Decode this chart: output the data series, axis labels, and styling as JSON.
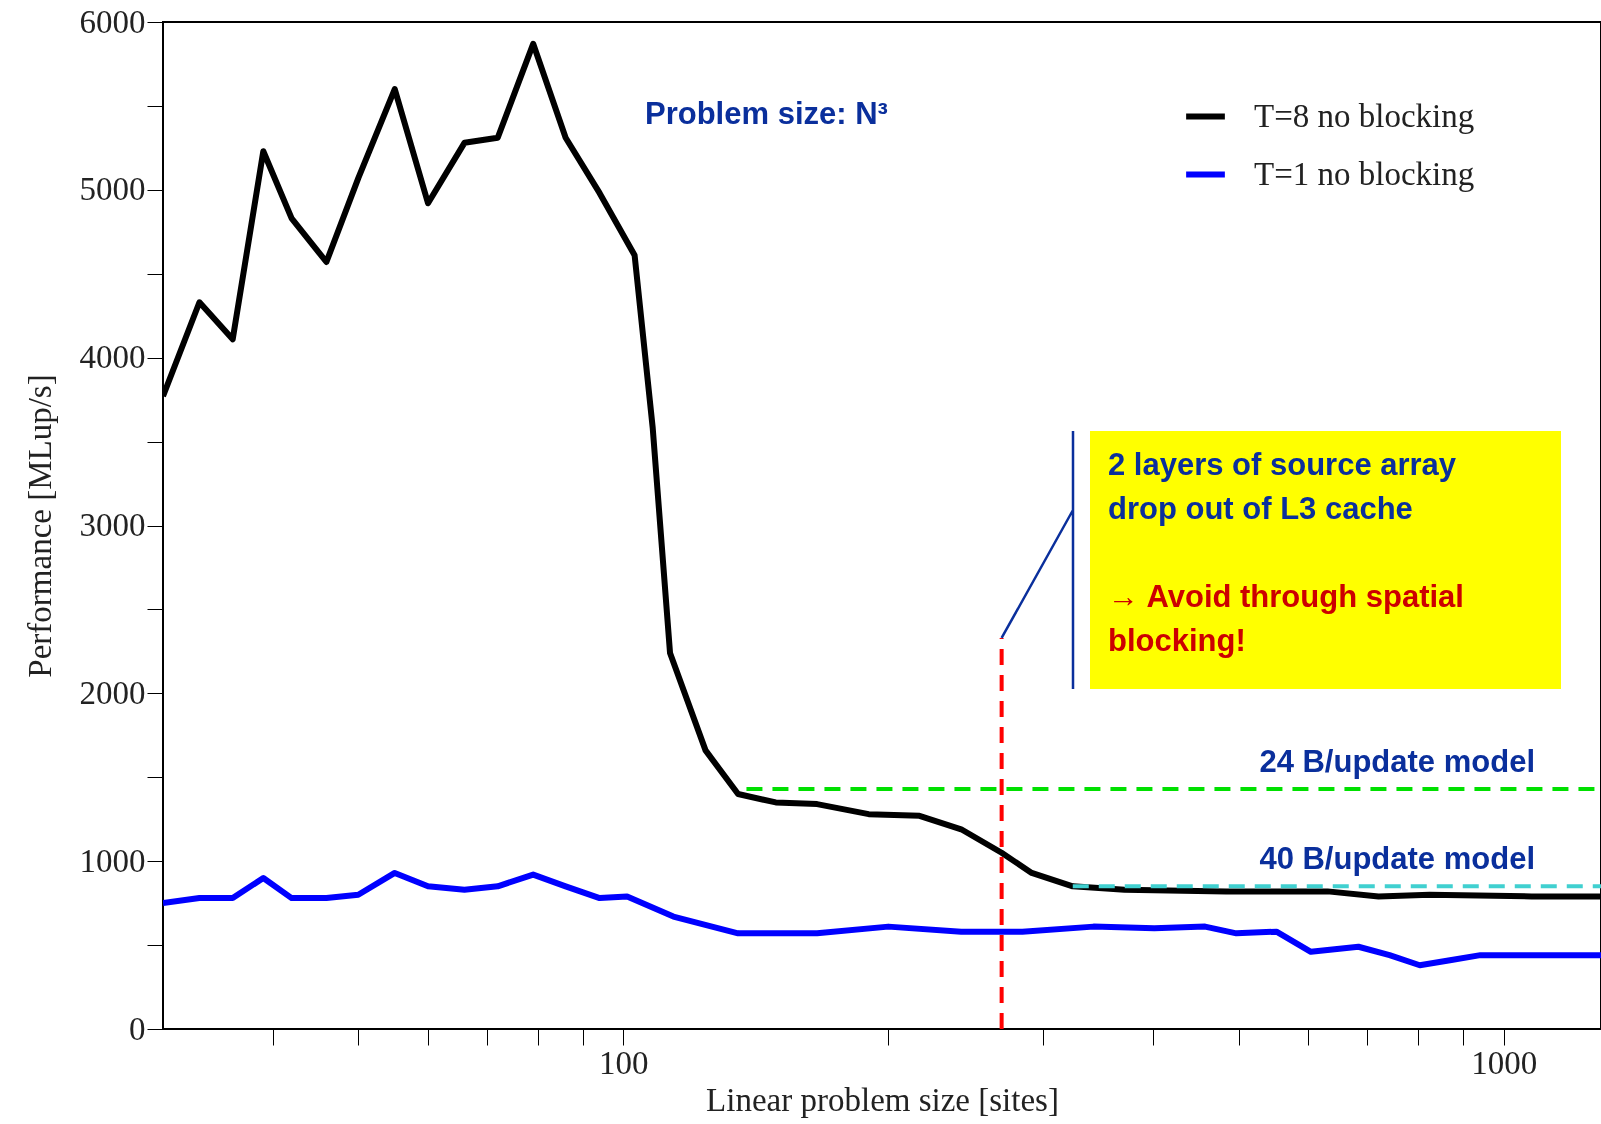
{
  "chart_data": {
    "type": "line",
    "xlabel": "Linear problem size [sites]",
    "ylabel": "Performance [MLup/s]",
    "log": "x",
    "xlim": [
      30,
      1290
    ],
    "ylim": [
      0,
      6000
    ],
    "xticks": [
      {
        "value": 40,
        "label": null
      },
      {
        "value": 50,
        "label": null
      },
      {
        "value": 60,
        "label": null
      },
      {
        "value": 70,
        "label": null
      },
      {
        "value": 80,
        "label": null
      },
      {
        "value": 90,
        "label": null
      },
      100,
      {
        "value": 200,
        "label": null
      },
      {
        "value": 300,
        "label": null
      },
      {
        "value": 400,
        "label": null
      },
      {
        "value": 500,
        "label": null
      },
      {
        "value": 600,
        "label": null
      },
      {
        "value": 700,
        "label": null
      },
      {
        "value": 800,
        "label": null
      },
      {
        "value": 900,
        "label": null
      },
      1000
    ],
    "yticks": [
      0,
      {
        "value": 500,
        "label": null
      },
      1000,
      {
        "value": 1500,
        "label": null
      },
      2000,
      {
        "value": 2500,
        "label": null
      },
      3000,
      {
        "value": 3500,
        "label": null
      },
      4000,
      {
        "value": 4500,
        "label": null
      },
      5000,
      {
        "value": 5500,
        "label": null
      },
      6000
    ],
    "grid": false,
    "legend": "top right",
    "series": [
      {
        "name": "T=8 no blocking",
        "color": "#000000",
        "line_style": "solid",
        "x": [
          30,
          33,
          36,
          39,
          42,
          46,
          50,
          55,
          60,
          66,
          72,
          79,
          86,
          94,
          103,
          108,
          113,
          124,
          135,
          149,
          166,
          190,
          217,
          242,
          269,
          291,
          324,
          371,
          484,
          631,
          721,
          824,
          1076,
          1290
        ],
        "values": [
          3770,
          4330,
          4110,
          5230,
          4830,
          4570,
          5070,
          5600,
          4920,
          5280,
          5310,
          5870,
          5310,
          4980,
          4610,
          3580,
          2240,
          1660,
          1400,
          1350,
          1340,
          1280,
          1270,
          1190,
          1050,
          930,
          850,
          830,
          820,
          820,
          790,
          800,
          790,
          790
        ]
      },
      {
        "name": "T=1 no blocking",
        "color": "#0000ff",
        "line_style": "solid",
        "x": [
          30,
          33,
          36,
          39,
          42,
          46,
          50,
          55,
          60,
          66,
          72,
          79,
          86,
          94,
          101,
          114,
          135,
          166,
          200,
          242,
          284,
          342,
          401,
          458,
          497,
          552,
          604,
          684,
          742,
          803,
          869,
          941,
          1290
        ],
        "values": [
          750,
          780,
          780,
          900,
          780,
          780,
          800,
          930,
          850,
          830,
          850,
          920,
          850,
          780,
          790,
          670,
          570,
          570,
          610,
          580,
          580,
          610,
          600,
          610,
          570,
          580,
          460,
          490,
          440,
          380,
          410,
          440,
          440
        ]
      },
      {
        "name": "24 B/update model",
        "color": "#00e000",
        "line_style": "dashed",
        "x": [
          138,
          1290
        ],
        "values": [
          1430,
          1430
        ]
      },
      {
        "name": "40 B/update model",
        "color": "#40d0d0",
        "line_style": "dashed",
        "x": [
          324,
          1290
        ],
        "values": [
          850,
          850
        ]
      },
      {
        "color": "#ff0000",
        "line_style": "dashed",
        "x": [
          269,
          269
        ],
        "values": [
          0,
          2330
        ]
      }
    ],
    "annotations": [
      "Problem size: N³",
      {
        "text": "2 layers of source array drop out of L3 cache",
        "x": 269,
        "y": 2330
      },
      "→ Avoid through spatial blocking!"
    ]
  }
}
